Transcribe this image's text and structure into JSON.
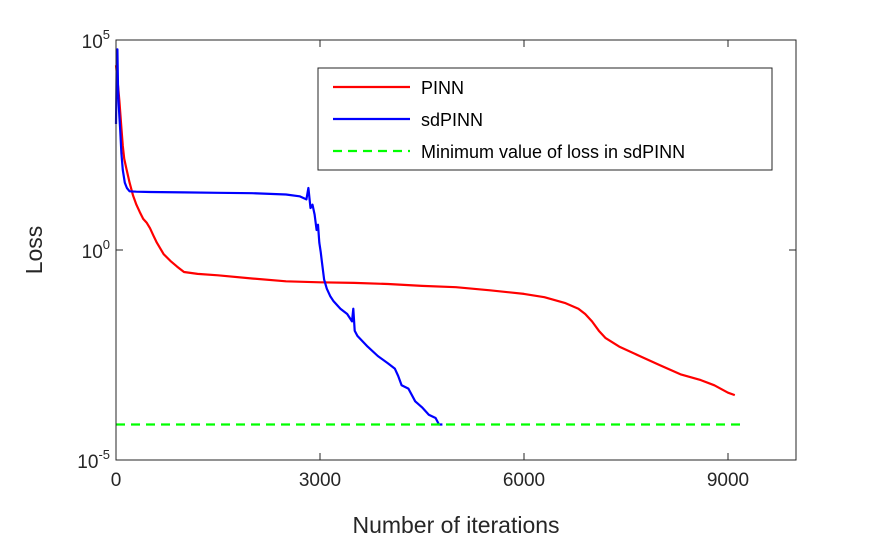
{
  "chart_data": {
    "type": "line",
    "title": "",
    "xlabel": "Number of iterations",
    "ylabel": "Loss",
    "xscale": "linear",
    "yscale": "log",
    "xlim": [
      0,
      10000
    ],
    "ylim": [
      1e-05,
      100000
    ],
    "x_ticks": [
      0,
      3000,
      6000,
      9000
    ],
    "x_tick_labels": [
      "0",
      "3000",
      "6000",
      "9000"
    ],
    "y_ticks": [
      {
        "value": 100000,
        "base": "10",
        "exp": "5"
      },
      {
        "value": 1,
        "base": "10",
        "exp": "0"
      },
      {
        "value": 1e-05,
        "base": "10",
        "exp": "-5"
      }
    ],
    "grid": false,
    "legend_position": "top-right",
    "series": [
      {
        "name": "PINN",
        "color": "#ff0000",
        "style": "solid",
        "x": [
          0,
          20,
          50,
          80,
          100,
          120,
          150,
          200,
          250,
          300,
          350,
          400,
          450,
          500,
          550,
          600,
          650,
          700,
          800,
          900,
          1000,
          1200,
          1500,
          2000,
          2500,
          3000,
          3500,
          4000,
          4500,
          5000,
          5500,
          6000,
          6300,
          6600,
          6800,
          6900,
          7000,
          7100,
          7200,
          7400,
          7700,
          8000,
          8300,
          8600,
          8800,
          9000,
          9100
        ],
        "y": [
          25000,
          12000,
          3500,
          800,
          300,
          150,
          90,
          40,
          20,
          12,
          8,
          5.5,
          4.5,
          3.3,
          2.2,
          1.5,
          1.1,
          0.8,
          0.55,
          0.4,
          0.3,
          0.27,
          0.25,
          0.21,
          0.18,
          0.17,
          0.165,
          0.155,
          0.14,
          0.13,
          0.11,
          0.09,
          0.075,
          0.055,
          0.04,
          0.03,
          0.02,
          0.012,
          0.008,
          0.005,
          0.003,
          0.0018,
          0.0011,
          0.0008,
          0.0006,
          0.0004,
          0.00035
        ]
      },
      {
        "name": "sdPINN",
        "color": "#0000ff",
        "style": "solid",
        "x": [
          0,
          10,
          20,
          30,
          40,
          50,
          60,
          80,
          100,
          130,
          160,
          200,
          300,
          500,
          1000,
          1500,
          2000,
          2500,
          2700,
          2800,
          2830,
          2860,
          2890,
          2920,
          2950,
          2970,
          2990,
          3010,
          3030,
          3060,
          3100,
          3150,
          3200,
          3300,
          3400,
          3470,
          3490,
          3510,
          3550,
          3700,
          3850,
          4000,
          4100,
          4150,
          4200,
          4300,
          4400,
          4500,
          4600,
          4700,
          4750,
          4800
        ],
        "y": [
          1000,
          30000,
          60000,
          8000,
          3000,
          1500,
          800,
          200,
          80,
          40,
          30,
          25,
          24.5,
          24,
          23.5,
          23,
          22.5,
          21,
          19,
          16,
          30,
          10,
          12,
          7,
          3,
          4,
          1.5,
          0.9,
          0.5,
          0.2,
          0.12,
          0.08,
          0.06,
          0.04,
          0.03,
          0.02,
          0.04,
          0.012,
          0.009,
          0.005,
          0.003,
          0.002,
          0.0015,
          0.001,
          0.0006,
          0.0005,
          0.00025,
          0.00018,
          0.00012,
          0.0001,
          7e-05,
          7e-05
        ]
      },
      {
        "name": "Minimum value of loss in sdPINN",
        "color": "#00ff00",
        "style": "dashed",
        "x": [
          0,
          9200
        ],
        "y": [
          7e-05,
          7e-05
        ]
      }
    ]
  }
}
